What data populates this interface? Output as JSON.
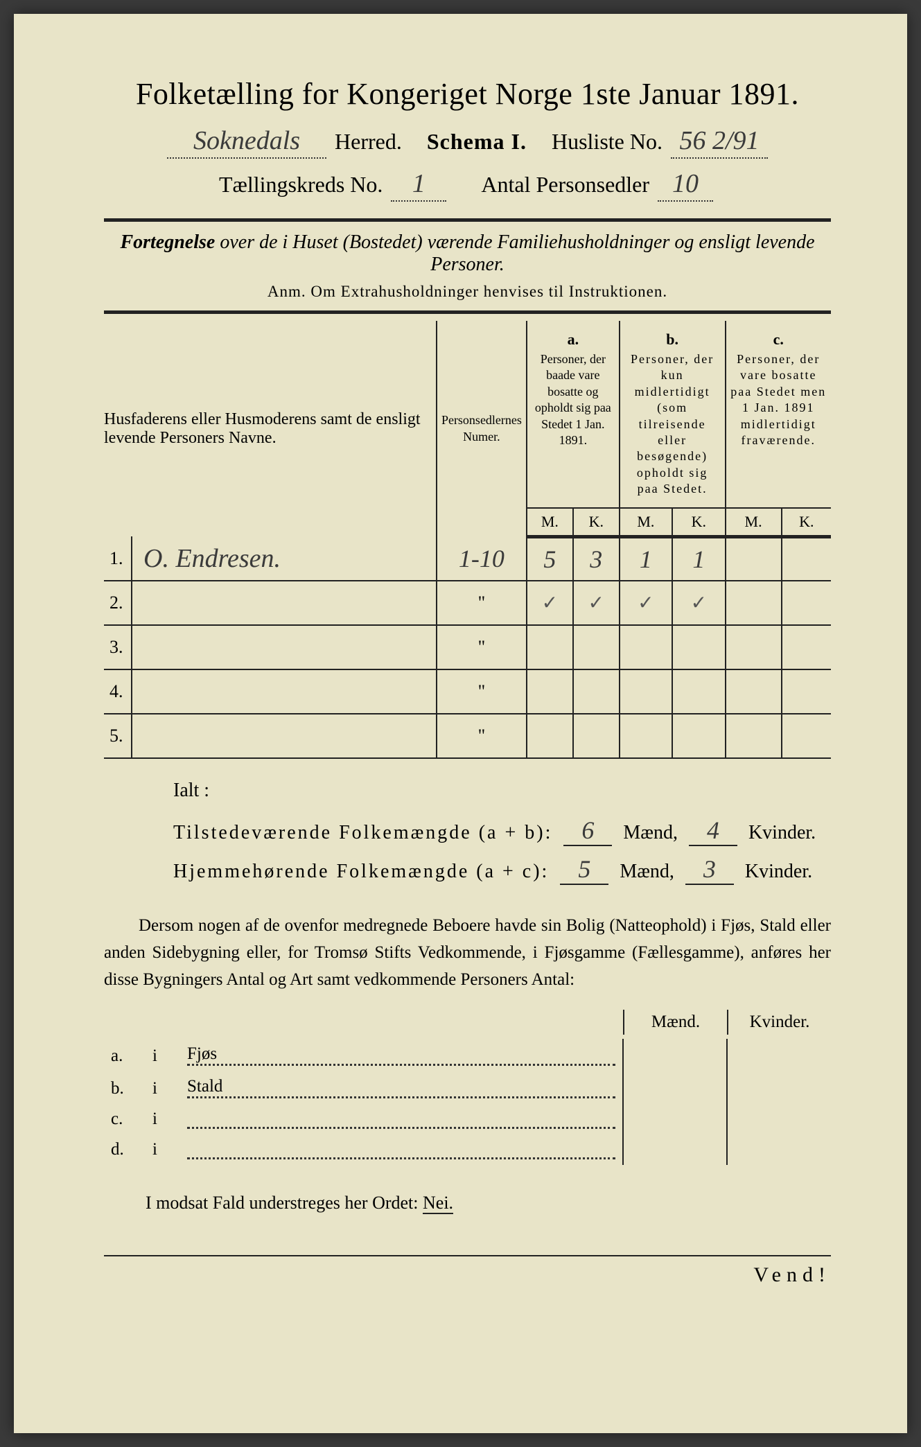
{
  "header": {
    "title": "Folketælling for Kongeriget Norge 1ste Januar 1891.",
    "herred_value": "Soknedals",
    "herred_label": "Herred.",
    "schema_label": "Schema I.",
    "husliste_label": "Husliste No.",
    "husliste_value": "56 2/91",
    "kreds_label": "Tællingskreds No.",
    "kreds_value": "1",
    "antal_label": "Antal Personsedler",
    "antal_value": "10"
  },
  "subtitle_bold": "Fortegnelse",
  "subtitle_rest": " over de i Huset (Bostedet) værende Familiehusholdninger og ensligt levende Personer.",
  "anm": "Anm. Om Extrahusholdninger henvises til Instruktionen.",
  "table": {
    "col1_header": "Husfaderens eller Husmoderens samt de ensligt levende Personers Navne.",
    "col2_header": "Personsedlernes Numer.",
    "col_a_letter": "a.",
    "col_a_desc": "Personer, der baade vare bosatte og opholdt sig paa Stedet 1 Jan. 1891.",
    "col_b_letter": "b.",
    "col_b_desc": "Personer, der kun midlertidigt (som tilreisende eller besøgende) opholdt sig paa Stedet.",
    "col_c_letter": "c.",
    "col_c_desc": "Personer, der vare bosatte paa Stedet men 1 Jan. 1891 midlertidigt fraværende.",
    "m_label": "M.",
    "k_label": "K.",
    "rows": [
      {
        "num": "1.",
        "name": "O. Endresen.",
        "sedler": "1-10",
        "a_m": "5",
        "a_k": "3",
        "b_m": "1",
        "b_k": "1",
        "c_m": "",
        "c_k": ""
      },
      {
        "num": "2.",
        "name": "",
        "sedler": "\"",
        "a_m": "✓",
        "a_k": "✓",
        "b_m": "✓",
        "b_k": "✓",
        "c_m": "",
        "c_k": ""
      },
      {
        "num": "3.",
        "name": "",
        "sedler": "\"",
        "a_m": "",
        "a_k": "",
        "b_m": "",
        "b_k": "",
        "c_m": "",
        "c_k": ""
      },
      {
        "num": "4.",
        "name": "",
        "sedler": "\"",
        "a_m": "",
        "a_k": "",
        "b_m": "",
        "b_k": "",
        "c_m": "",
        "c_k": ""
      },
      {
        "num": "5.",
        "name": "",
        "sedler": "\"",
        "a_m": "",
        "a_k": "",
        "b_m": "",
        "b_k": "",
        "c_m": "",
        "c_k": ""
      }
    ]
  },
  "ialt": {
    "label": "Ialt :",
    "row1_label": "Tilstedeværende Folkemængde (a + b):",
    "row1_m": "6",
    "row1_k": "4",
    "row2_label": "Hjemmehørende Folkemængde (a + c):",
    "row2_m": "5",
    "row2_k": "3",
    "maend": "Mænd,",
    "kvinder": "Kvinder."
  },
  "paragraph": "Dersom nogen af de ovenfor medregnede Beboere havde sin Bolig (Natteophold) i Fjøs, Stald eller anden Sidebygning eller, for Tromsø Stifts Vedkommende, i Fjøsgamme (Fællesgamme), anføres her disse Bygningers Antal og Art samt vedkommende Personers Antal:",
  "buildings": {
    "maend_header": "Mænd.",
    "kvinder_header": "Kvinder.",
    "rows": [
      {
        "letter": "a.",
        "i": "i",
        "label": "Fjøs"
      },
      {
        "letter": "b.",
        "i": "i",
        "label": "Stald"
      },
      {
        "letter": "c.",
        "i": "i",
        "label": ""
      },
      {
        "letter": "d.",
        "i": "i",
        "label": ""
      }
    ]
  },
  "nei_line": "I modsat Fald understreges her Ordet:",
  "nei_word": "Nei.",
  "vend": "Vend!",
  "colors": {
    "paper": "#e8e4c8",
    "ink": "#222222",
    "handwriting": "#3a3a3a"
  }
}
